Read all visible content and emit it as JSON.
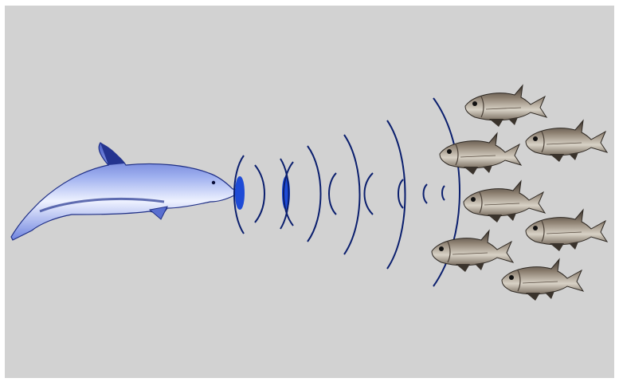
{
  "scene": {
    "subject": "dolphin-echolocation",
    "colors": {
      "background": "#d2d2d2",
      "border": "#ffffff",
      "wave": "#0b1f6e",
      "pulse": "#1e4bd6",
      "dolphin_light": "#eef2ff",
      "dolphin_mid": "#7f95e6",
      "dolphin_dark": "#24348f",
      "fish_body": "#8c7f70",
      "fish_dark": "#3a332c",
      "fish_light": "#d8d2c6"
    },
    "icons": [
      "dolphin-icon",
      "fish-icon",
      "sound-wave-icon"
    ],
    "fish_count": 7
  }
}
